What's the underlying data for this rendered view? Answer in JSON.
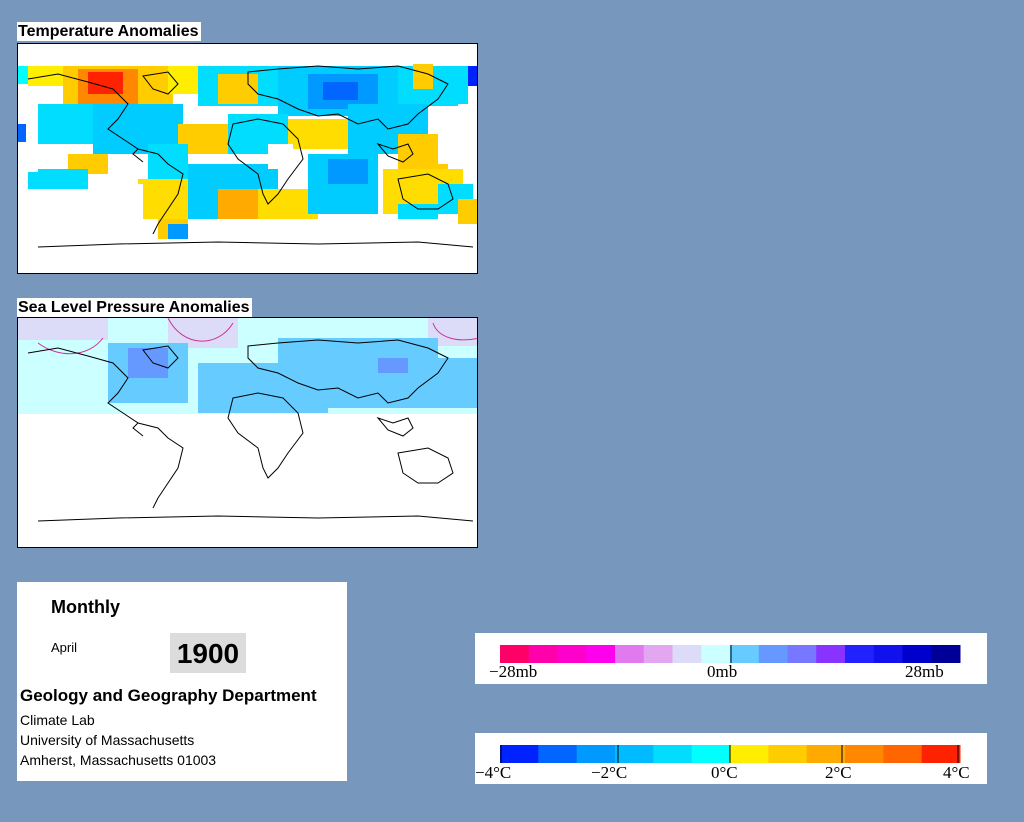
{
  "temperature_map": {
    "title": "Temperature Anomalies"
  },
  "pressure_map": {
    "title": "Sea Level Pressure Anomalies"
  },
  "info": {
    "period": "Monthly",
    "month": "April",
    "year": "1900",
    "department": "Geology and Geography Department",
    "address_lines": [
      "Climate Lab",
      "University of Massachusetts",
      "Amherst, Massachusetts 01003"
    ]
  },
  "pressure_legend": {
    "colors": [
      "#ff0066",
      "#ff00aa",
      "#ff00cc",
      "#ff00ee",
      "#e07aee",
      "#e3a6f0",
      "#dcdcf8",
      "#ccffff",
      "#66ccff",
      "#6699ff",
      "#7777ff",
      "#8833ff",
      "#2222ff",
      "#1111ee",
      "#0000cc",
      "#000099"
    ],
    "tick_labels": [
      "−28mb",
      "0mb",
      "28mb"
    ]
  },
  "temperature_legend": {
    "colors": [
      "#0022ff",
      "#0066ff",
      "#0099ff",
      "#00bbff",
      "#00ddff",
      "#00ffff",
      "#ffee00",
      "#ffcc00",
      "#ffaa00",
      "#ff8800",
      "#ff6600",
      "#ff2200"
    ],
    "tick_labels": [
      "−4°C",
      "−2°C",
      "0°C",
      "2°C",
      "4°C"
    ]
  }
}
